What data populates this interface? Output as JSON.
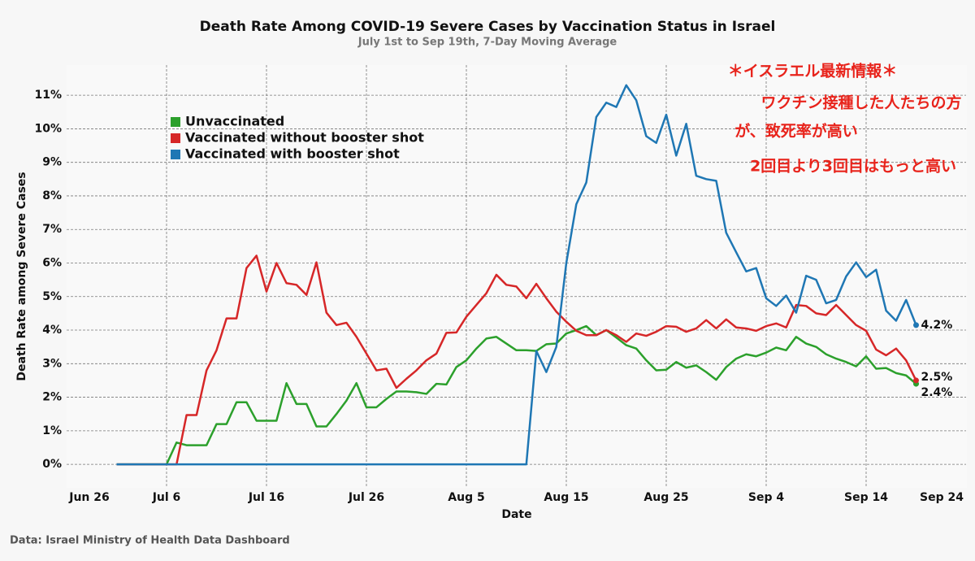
{
  "chart_data": {
    "type": "line",
    "title": "Death Rate Among COVID-19 Severe Cases by Vaccination Status in Israel",
    "subtitle": "July 1st to Sep 19th, 7-Day Moving Average",
    "x_label": "Date",
    "y_label": "Death Rate among Severe Cases",
    "source": "Data: Israel Ministry of Health Data Dashboard",
    "annotations": [
      "＊イスラエル最新情報＊",
      "ワクチン接種した人たちの方",
      "が、致死率が高い",
      "2回目より3回目はもっと高い"
    ],
    "annotation_color": "#e8231b",
    "grid": true,
    "legend": "upper left",
    "xlim": [
      "Jun 26",
      "Sep 24"
    ],
    "xticks": [
      "Jun 26",
      "Jul 6",
      "Jul 16",
      "Jul 26",
      "Aug 5",
      "Aug 15",
      "Aug 25",
      "Sep 4",
      "Sep 14",
      "Sep 24"
    ],
    "ylim": [
      -0.7,
      11.9
    ],
    "yticks": [
      {
        "value": 0,
        "label": "0%"
      },
      {
        "value": 1,
        "label": "1%"
      },
      {
        "value": 2,
        "label": "2%"
      },
      {
        "value": 3,
        "label": "3%"
      },
      {
        "value": 4,
        "label": "4%"
      },
      {
        "value": 5,
        "label": "5%"
      },
      {
        "value": 6,
        "label": "6%"
      },
      {
        "value": 7,
        "label": "7%"
      },
      {
        "value": 8,
        "label": "8%"
      },
      {
        "value": 9,
        "label": "9%"
      },
      {
        "value": 10,
        "label": "10%"
      },
      {
        "value": 11,
        "label": "11%"
      }
    ],
    "x": [
      "Jul 1",
      "Jul 2",
      "Jul 3",
      "Jul 4",
      "Jul 5",
      "Jul 6",
      "Jul 7",
      "Jul 8",
      "Jul 9",
      "Jul 10",
      "Jul 11",
      "Jul 12",
      "Jul 13",
      "Jul 14",
      "Jul 15",
      "Jul 16",
      "Jul 17",
      "Jul 18",
      "Jul 19",
      "Jul 20",
      "Jul 21",
      "Jul 22",
      "Jul 23",
      "Jul 24",
      "Jul 25",
      "Jul 26",
      "Jul 27",
      "Jul 28",
      "Jul 29",
      "Jul 30",
      "Jul 31",
      "Aug 1",
      "Aug 2",
      "Aug 3",
      "Aug 4",
      "Aug 5",
      "Aug 6",
      "Aug 7",
      "Aug 8",
      "Aug 9",
      "Aug 10",
      "Aug 11",
      "Aug 12",
      "Aug 13",
      "Aug 14",
      "Aug 15",
      "Aug 16",
      "Aug 17",
      "Aug 18",
      "Aug 19",
      "Aug 20",
      "Aug 21",
      "Aug 22",
      "Aug 23",
      "Aug 24",
      "Aug 25",
      "Aug 26",
      "Aug 27",
      "Aug 28",
      "Aug 29",
      "Aug 30",
      "Aug 31",
      "Sep 1",
      "Sep 2",
      "Sep 3",
      "Sep 4",
      "Sep 5",
      "Sep 6",
      "Sep 7",
      "Sep 8",
      "Sep 9",
      "Sep 10",
      "Sep 11",
      "Sep 12",
      "Sep 13",
      "Sep 14",
      "Sep 15",
      "Sep 16",
      "Sep 17",
      "Sep 18",
      "Sep 19"
    ],
    "series": [
      {
        "name": "Unvaccinated",
        "color": "#2ca02c",
        "values": [
          0,
          0,
          0,
          0,
          0,
          0,
          0.65,
          0.57,
          0.57,
          0.57,
          1.2,
          1.2,
          1.85,
          1.85,
          1.3,
          1.3,
          1.3,
          2.42,
          1.8,
          1.8,
          1.13,
          1.13,
          1.5,
          1.9,
          2.42,
          1.7,
          1.7,
          1.95,
          2.17,
          2.17,
          2.15,
          2.1,
          2.4,
          2.38,
          2.9,
          3.1,
          3.45,
          3.75,
          3.8,
          3.6,
          3.4,
          3.4,
          3.38,
          3.58,
          3.6,
          3.9,
          4.0,
          4.12,
          3.85,
          4.0,
          3.78,
          3.55,
          3.45,
          3.1,
          2.8,
          2.82,
          3.05,
          2.88,
          2.95,
          2.75,
          2.52,
          2.9,
          3.15,
          3.28,
          3.22,
          3.33,
          3.48,
          3.4,
          3.8,
          3.6,
          3.5,
          3.28,
          3.15,
          3.05,
          2.92,
          3.22,
          2.85,
          2.87,
          2.72,
          2.65,
          2.4
        ],
        "value_labels": {
          "80": "2.4%"
        }
      },
      {
        "name": "Vaccinated without booster shot",
        "color": "#d62728",
        "values": [
          0,
          0,
          0,
          0,
          0,
          0,
          0,
          1.47,
          1.47,
          2.8,
          3.4,
          4.35,
          4.35,
          5.85,
          6.22,
          5.15,
          6.0,
          5.4,
          5.35,
          5.05,
          6.02,
          4.52,
          4.15,
          4.22,
          3.8,
          3.3,
          2.8,
          2.85,
          2.28,
          2.55,
          2.8,
          3.1,
          3.3,
          3.92,
          3.93,
          4.4,
          4.75,
          5.1,
          5.65,
          5.35,
          5.3,
          4.95,
          5.38,
          4.95,
          4.55,
          4.25,
          3.98,
          3.85,
          3.85,
          4.0,
          3.85,
          3.65,
          3.9,
          3.83,
          3.95,
          4.12,
          4.1,
          3.95,
          4.05,
          4.3,
          4.05,
          4.32,
          4.08,
          4.05,
          3.98,
          4.12,
          4.2,
          4.08,
          4.75,
          4.72,
          4.5,
          4.45,
          4.75,
          4.45,
          4.15,
          3.98,
          3.42,
          3.25,
          3.45,
          3.1,
          2.5
        ],
        "value_labels": {
          "80": "2.5%"
        }
      },
      {
        "name": "Vaccinated with booster shot",
        "color": "#1f77b4",
        "values": [
          0,
          0,
          0,
          0,
          0,
          0,
          0,
          0,
          0,
          0,
          0,
          0,
          0,
          0,
          0,
          0,
          0,
          0,
          0,
          0,
          0,
          0,
          0,
          0,
          0,
          0,
          0,
          0,
          0,
          0,
          0,
          0,
          0,
          0,
          0,
          0,
          0,
          0,
          0,
          0,
          0,
          0,
          3.38,
          2.75,
          3.5,
          6.0,
          7.75,
          8.4,
          10.35,
          10.78,
          10.65,
          11.3,
          10.85,
          9.78,
          9.58,
          10.42,
          9.2,
          10.15,
          8.6,
          8.5,
          8.45,
          6.9,
          6.32,
          5.75,
          5.85,
          4.95,
          4.72,
          5.03,
          4.52,
          5.62,
          5.5,
          4.8,
          4.9,
          5.6,
          6.02,
          5.58,
          5.8,
          4.58,
          4.28,
          4.9,
          4.15
        ],
        "value_labels": {
          "80": "4.2%"
        }
      }
    ]
  }
}
